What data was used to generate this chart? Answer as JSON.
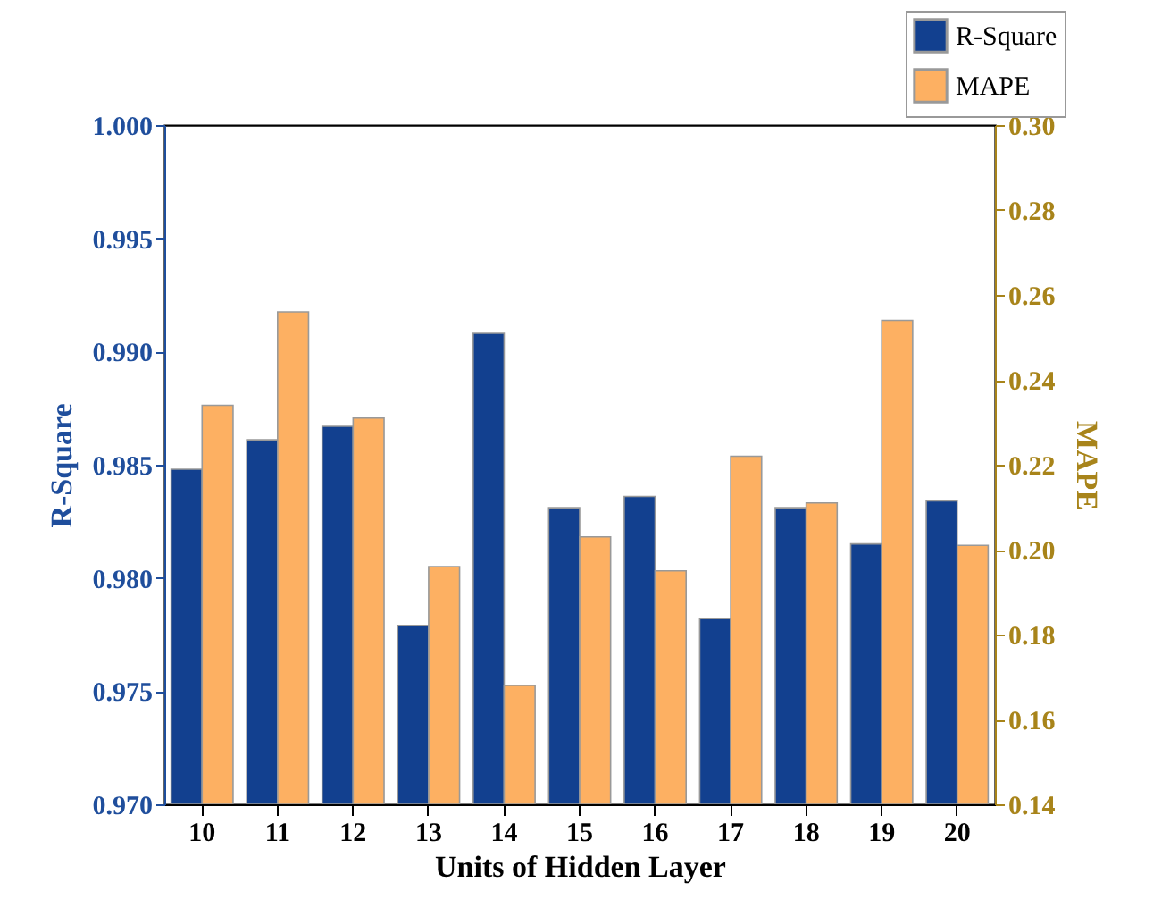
{
  "chart_data": {
    "type": "bar",
    "xlabel": "Units of Hidden Layer",
    "ylabel": "R-Square",
    "y2label": "MAPE",
    "categories": [
      "10",
      "11",
      "12",
      "13",
      "14",
      "15",
      "16",
      "17",
      "18",
      "19",
      "20"
    ],
    "series": [
      {
        "name": "R-Square",
        "color": "#12408f",
        "values": [
          0.9848,
          0.9861,
          0.9867,
          0.9779,
          0.9908,
          0.9831,
          0.9836,
          0.9782,
          0.9831,
          0.9815,
          0.9834
        ]
      },
      {
        "name": "MAPE",
        "color": "#fdb062",
        "axis": "y2",
        "values": [
          0.234,
          0.256,
          0.231,
          0.196,
          0.168,
          0.203,
          0.195,
          0.222,
          0.211,
          0.254,
          0.201
        ]
      }
    ],
    "ylim": [
      0.97,
      1.0
    ],
    "yticks": [
      {
        "value": 0.97,
        "label": "0.970"
      },
      {
        "value": 0.975,
        "label": "0.975"
      },
      {
        "value": 0.98,
        "label": "0.980"
      },
      {
        "value": 0.985,
        "label": "0.985"
      },
      {
        "value": 0.99,
        "label": "0.990"
      },
      {
        "value": 0.995,
        "label": "0.995"
      },
      {
        "value": 1.0,
        "label": "1.000"
      }
    ],
    "y2lim": [
      0.14,
      0.3
    ],
    "y2ticks": [
      {
        "value": 0.14,
        "label": "0.14"
      },
      {
        "value": 0.16,
        "label": "0.16"
      },
      {
        "value": 0.18,
        "label": "0.18"
      },
      {
        "value": 0.2,
        "label": "0.20"
      },
      {
        "value": 0.22,
        "label": "0.22"
      },
      {
        "value": 0.24,
        "label": "0.24"
      },
      {
        "value": 0.26,
        "label": "0.26"
      },
      {
        "value": 0.28,
        "label": "0.28"
      },
      {
        "value": 0.3,
        "label": "0.30"
      }
    ],
    "legend": "top right",
    "grid": false
  }
}
